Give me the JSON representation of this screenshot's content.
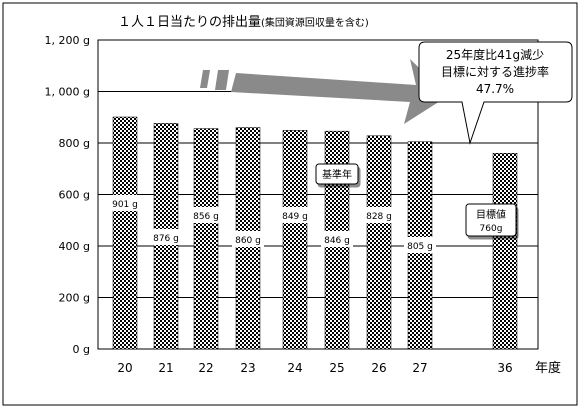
{
  "chart_data": {
    "type": "bar",
    "title": "１人１日当たりの排出量",
    "subtitle": "(集団資源回収量を含む)",
    "categories": [
      "20",
      "21",
      "22",
      "23",
      "24",
      "25",
      "26",
      "27",
      "36"
    ],
    "values": [
      901,
      876,
      856,
      860,
      849,
      846,
      828,
      805,
      760
    ],
    "value_labels": [
      "901 g",
      "876 g",
      "856 g",
      "860 g",
      "849 g",
      "846 g",
      "828 g",
      "805 g",
      "760g"
    ],
    "y_ticks": [
      {
        "value": 0,
        "label": "0 g"
      },
      {
        "value": 200,
        "label": "200 g"
      },
      {
        "value": 400,
        "label": "400 g"
      },
      {
        "value": 600,
        "label": "600 g"
      },
      {
        "value": 800,
        "label": "800 g"
      },
      {
        "value": 1000,
        "label": "1, 000 g"
      },
      {
        "value": 1200,
        "label": "1, 200 g"
      }
    ],
    "ylim": [
      0,
      1200
    ],
    "xlabel": "年度",
    "ylabel": "",
    "grid": true,
    "bar_pattern": "checkered",
    "annotations": {
      "base_year_label": "基準年",
      "base_year_category": "25",
      "target_label": "目標値",
      "target_value_label": "760g",
      "target_category": "36",
      "callout_line1": "25年度比41g減少",
      "callout_line2": "目標に対する進捗率",
      "callout_line3": "47.7%"
    },
    "colors": {
      "arrow": "#8a8a8a",
      "grid": "#000000",
      "bar_dark": "#000000",
      "bar_light": "#ffffff"
    }
  }
}
